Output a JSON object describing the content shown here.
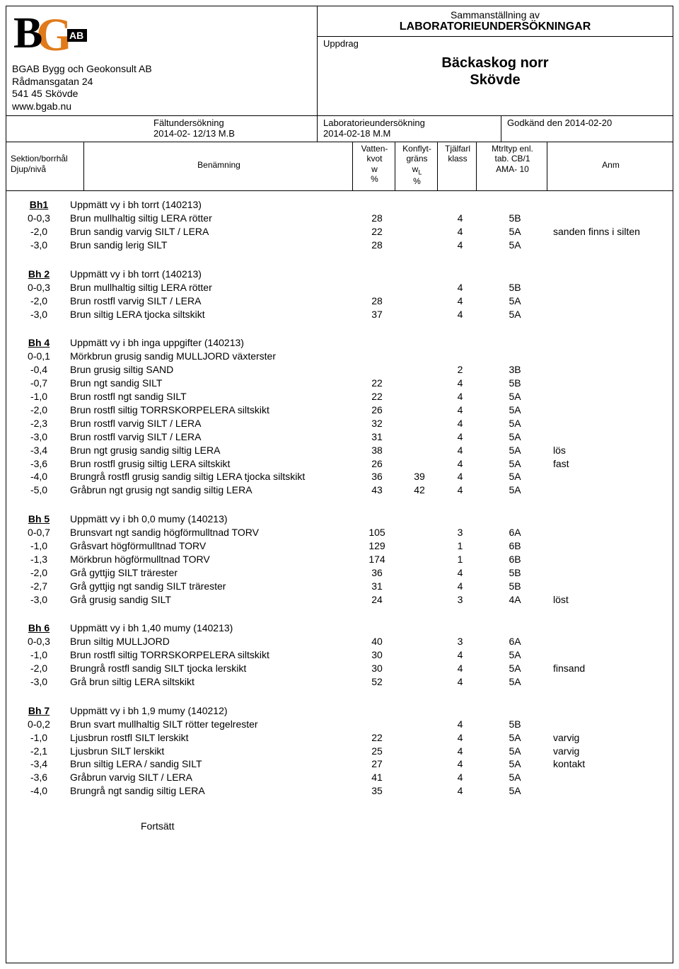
{
  "header": {
    "company_name": "BGAB Bygg och Geokonsult AB",
    "address1": "Rådmansgatan 24",
    "address2": "541 45 Skövde",
    "website": "www.bgab.nu",
    "title_line1": "Sammanställning av",
    "title_line2": "LABORATORIEUNDERSÖKNINGAR",
    "uppdrag_label": "Uppdrag",
    "uppdrag_value1": "Bäckaskog norr",
    "uppdrag_value2": "Skövde",
    "falt_label": "Fältundersökning",
    "falt_value": "2014-02- 12/13 M.B",
    "lab_label": "Laboratorieundersökning",
    "lab_value": "2014-02-18 M.M",
    "godkand": "Godkänd den 2014-02-20",
    "col_sektion1": "Sektion/borrhål",
    "col_sektion2": "Djup/nivå",
    "col_benamning": "Benämning",
    "col_vatten1": "Vatten-",
    "col_vatten2": "kvot",
    "col_vatten3": "w",
    "col_vatten4": "%",
    "col_konflyt1": "Konflyt-",
    "col_konflyt2": "gräns",
    "col_konflyt3": "w",
    "col_konflyt3sub": "L",
    "col_konflyt4": "%",
    "col_tjal1": "Tjälfarl",
    "col_tjal2": "klass",
    "col_mtrl1": "Mtrltyp enl.",
    "col_mtrl2": "tab. CB/1",
    "col_mtrl3": "AMA- 10",
    "col_anm": "Anm"
  },
  "logo": {
    "b_color": "#000000",
    "g_color": "#e07a1a",
    "ab_bg": "#000000",
    "ab_text": "#ffffff"
  },
  "footer": "Fortsätt",
  "sections": [
    {
      "head": "Bh1",
      "head_desc": "Uppmätt vy i bh torrt (140213)",
      "rows": [
        {
          "d": "0-0,3",
          "desc": "Brun mullhaltig siltig LERA rötter",
          "w": "28",
          "wl": "",
          "tj": "4",
          "mt": "5B",
          "anm": ""
        },
        {
          "d": "-2,0",
          "desc": "Brun sandig varvig SILT / LERA",
          "w": "22",
          "wl": "",
          "tj": "4",
          "mt": "5A",
          "anm": "sanden finns i silten"
        },
        {
          "d": "-3,0",
          "desc": "Brun sandig lerig SILT",
          "w": "28",
          "wl": "",
          "tj": "4",
          "mt": "5A",
          "anm": ""
        }
      ]
    },
    {
      "head": "Bh 2",
      "head_desc": "Uppmätt vy i bh torrt (140213)",
      "rows": [
        {
          "d": "0-0,3",
          "desc": "Brun mullhaltig siltig LERA rötter",
          "w": "",
          "wl": "",
          "tj": "4",
          "mt": "5B",
          "anm": ""
        },
        {
          "d": "-2,0",
          "desc": "Brun rostfl varvig SILT / LERA",
          "w": "28",
          "wl": "",
          "tj": "4",
          "mt": "5A",
          "anm": ""
        },
        {
          "d": "-3,0",
          "desc": "Brun siltig LERA tjocka siltskikt",
          "w": "37",
          "wl": "",
          "tj": "4",
          "mt": "5A",
          "anm": ""
        }
      ]
    },
    {
      "head": "Bh 4",
      "head_desc": "Uppmätt vy i bh inga uppgifter (140213)",
      "rows": [
        {
          "d": "0-0,1",
          "desc": "Mörkbrun grusig sandig MULLJORD växterster",
          "w": "",
          "wl": "",
          "tj": "",
          "mt": "",
          "anm": ""
        },
        {
          "d": "-0,4",
          "desc": "Brun grusig siltig SAND",
          "w": "",
          "wl": "",
          "tj": "2",
          "mt": "3B",
          "anm": ""
        },
        {
          "d": "-0,7",
          "desc": "Brun ngt sandig SILT",
          "w": "22",
          "wl": "",
          "tj": "4",
          "mt": "5B",
          "anm": ""
        },
        {
          "d": "-1,0",
          "desc": "Brun rostfl ngt sandig SILT",
          "w": "22",
          "wl": "",
          "tj": "4",
          "mt": "5A",
          "anm": ""
        },
        {
          "d": "-2,0",
          "desc": "Brun rostfl siltig TORRSKORPELERA siltskikt",
          "w": "26",
          "wl": "",
          "tj": "4",
          "mt": "5A",
          "anm": ""
        },
        {
          "d": "-2,3",
          "desc": "Brun rostfl varvig SILT / LERA",
          "w": "32",
          "wl": "",
          "tj": "4",
          "mt": "5A",
          "anm": ""
        },
        {
          "d": "-3,0",
          "desc": "Brun rostfl varvig SILT / LERA",
          "w": "31",
          "wl": "",
          "tj": "4",
          "mt": "5A",
          "anm": ""
        },
        {
          "d": "-3,4",
          "desc": "Brun ngt grusig sandig siltig LERA",
          "w": "38",
          "wl": "",
          "tj": "4",
          "mt": "5A",
          "anm": "lös"
        },
        {
          "d": "-3,6",
          "desc": "Brun rostfl grusig siltig LERA siltskikt",
          "w": "26",
          "wl": "",
          "tj": "4",
          "mt": "5A",
          "anm": "fast"
        },
        {
          "d": "-4,0",
          "desc": "Brungrå rostfl grusig sandig siltig LERA tjocka siltskikt",
          "w": "36",
          "wl": "39",
          "tj": "4",
          "mt": "5A",
          "anm": ""
        },
        {
          "d": "-5,0",
          "desc": "Gråbrun ngt grusig ngt sandig siltig LERA",
          "w": "43",
          "wl": "42",
          "tj": "4",
          "mt": "5A",
          "anm": ""
        }
      ]
    },
    {
      "head": "Bh 5",
      "head_desc": "Uppmätt vy i bh 0,0 mumy (140213)",
      "rows": [
        {
          "d": "0-0,7",
          "desc": "Brunsvart ngt sandig högförmulltnad TORV",
          "w": "105",
          "wl": "",
          "tj": "3",
          "mt": "6A",
          "anm": ""
        },
        {
          "d": "-1,0",
          "desc": "Gråsvart högförmulltnad TORV",
          "w": "129",
          "wl": "",
          "tj": "1",
          "mt": "6B",
          "anm": ""
        },
        {
          "d": "-1,3",
          "desc": "Mörkbrun högförmulltnad TORV",
          "w": "174",
          "wl": "",
          "tj": "1",
          "mt": "6B",
          "anm": ""
        },
        {
          "d": "-2,0",
          "desc": "Grå gyttjig SILT trärester",
          "w": "36",
          "wl": "",
          "tj": "4",
          "mt": "5B",
          "anm": ""
        },
        {
          "d": "-2,7",
          "desc": "Grå gyttjig ngt sandig SILT trärester",
          "w": "31",
          "wl": "",
          "tj": "4",
          "mt": "5B",
          "anm": ""
        },
        {
          "d": "-3,0",
          "desc": "Grå grusig sandig SILT",
          "w": "24",
          "wl": "",
          "tj": "3",
          "mt": "4A",
          "anm": "löst"
        }
      ]
    },
    {
      "head": "Bh 6",
      "head_desc": "Uppmätt vy i bh 1,40 mumy (140213)",
      "rows": [
        {
          "d": "0-0,3",
          "desc": "Brun siltig MULLJORD",
          "w": "40",
          "wl": "",
          "tj": "3",
          "mt": "6A",
          "anm": ""
        },
        {
          "d": "-1,0",
          "desc": "Brun rostfl siltig TORRSKORPELERA siltskikt",
          "w": "30",
          "wl": "",
          "tj": "4",
          "mt": "5A",
          "anm": ""
        },
        {
          "d": "-2,0",
          "desc": "Brungrå rostfl sandig SILT tjocka lerskikt",
          "w": "30",
          "wl": "",
          "tj": "4",
          "mt": "5A",
          "anm": "finsand"
        },
        {
          "d": "-3,0",
          "desc": "Grå brun siltig LERA siltskikt",
          "w": "52",
          "wl": "",
          "tj": "4",
          "mt": "5A",
          "anm": ""
        }
      ]
    },
    {
      "head": "Bh 7",
      "head_desc": "Uppmätt vy i bh 1,9 mumy (140212)",
      "rows": [
        {
          "d": "0-0,2",
          "desc": "Brun svart mullhaltig SILT rötter tegelrester",
          "w": "",
          "wl": "",
          "tj": "4",
          "mt": "5B",
          "anm": ""
        },
        {
          "d": "-1,0",
          "desc": "Ljusbrun rostfl SILT lerskikt",
          "w": "22",
          "wl": "",
          "tj": "4",
          "mt": "5A",
          "anm": "varvig"
        },
        {
          "d": "-2,1",
          "desc": "Ljusbrun SILT lerskikt",
          "w": "25",
          "wl": "",
          "tj": "4",
          "mt": "5A",
          "anm": "varvig"
        },
        {
          "d": "-3,4",
          "desc": "Brun siltig LERA / sandig SILT",
          "w": "27",
          "wl": "",
          "tj": "4",
          "mt": "5A",
          "anm": "kontakt"
        },
        {
          "d": "-3,6",
          "desc": "Gråbrun varvig SILT / LERA",
          "w": "41",
          "wl": "",
          "tj": "4",
          "mt": "5A",
          "anm": ""
        },
        {
          "d": "-4,0",
          "desc": "Brungrå ngt sandig siltig LERA",
          "w": "35",
          "wl": "",
          "tj": "4",
          "mt": "5A",
          "anm": ""
        }
      ]
    }
  ]
}
